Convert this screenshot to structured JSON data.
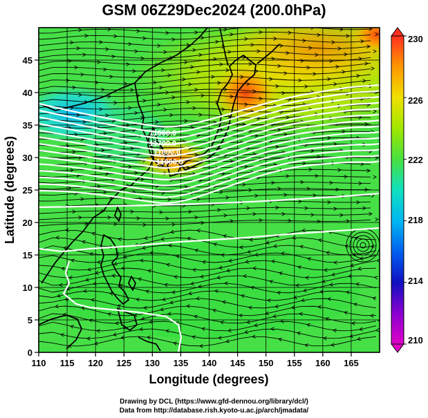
{
  "title": "GSM 06Z29Dec2024 (200.0hPa)",
  "x_axis": {
    "label": "Longitude (degrees)",
    "ticks": [
      "110",
      "115",
      "120",
      "125",
      "130",
      "135",
      "140",
      "145",
      "150",
      "155",
      "160",
      "165"
    ],
    "range": [
      110,
      170
    ]
  },
  "y_axis": {
    "label": "Latitude  (degrees)",
    "ticks": [
      "0",
      "5",
      "10",
      "15",
      "20",
      "25",
      "30",
      "35",
      "40",
      "45"
    ],
    "range": [
      0,
      50
    ]
  },
  "colorbar": {
    "labels": [
      "230",
      "226",
      "222",
      "218",
      "214",
      "210"
    ],
    "range": [
      210,
      230
    ],
    "colors": {
      "210": "#e000c8",
      "212": "#8a00d0",
      "214": "#1010c0",
      "216": "#0060f0",
      "218": "#00b8f0",
      "220": "#10e0c0",
      "221": "#30e070",
      "222": "#48e040",
      "224": "#a0e800",
      "226": "#f0e000",
      "228": "#ff9800",
      "230": "#ff3020"
    }
  },
  "contour_labels": [
    "11600.0",
    "11700.0",
    "11800.0",
    "11900.0"
  ],
  "credits": {
    "line1": "Drawing by DCL (https://www.gfd-dennou.org/library/dcl/)",
    "line2": "Data from http://database.rish.kyoto-u.ac.jp/arch/jmadata/"
  }
}
